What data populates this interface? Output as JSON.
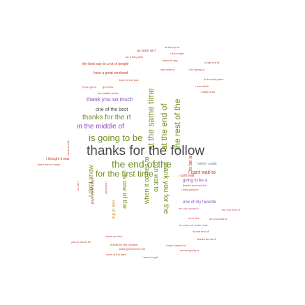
{
  "colors": {
    "gray": "#4a4a4a",
    "olive": "#6f8f1f",
    "red": "#c23b22",
    "pink": "#d2458c",
    "purple": "#8a4cbf",
    "orange": "#e28a1e",
    "slate": "#607a86",
    "brown": "#8a5a2b"
  },
  "words": {
    "thanks_for_the_follow": "thanks for the follow",
    "the_end_of_the": "the end of the",
    "is_going_to_be": "is going to be",
    "for_the_first_time": "for the first time",
    "thanks_for_the_rt": "thanks for the rt",
    "in_the_middle_of": "in the middle of",
    "thank_you_so_much": "thank you so much",
    "one_of_the_best": "one of the best",
    "i_cant_wait_to": "i cant wait to",
    "going_to_be_a": "going to be a",
    "one_of_my_favorite": "one of my favorite",
    "i_wish_i_could": "i wish i could",
    "at_the_same_time": "at the same time",
    "at_the_end_of": "at the end of",
    "the_rest_of_the": "the rest of the",
    "thank_you_for_the": "thank you for the",
    "can_wait_to": "can wait to",
    "when_it_comes_to": "when it comes to",
    "is_one_of_the": "is one of the",
    "i_dont_know": "i dont know",
    "to_be_a": "to be a",
    "one_of_the": "one of the",
    "as_soon_as_i": "as soon as i",
    "i_dont_want": "i dont want",
    "for_a_long_time": "for a long time",
    "the_best_way_to_a_lot_of_people": "the best way to a lot of people",
    "have_a_great_weekend": "have a great weekend",
    "hope_to_see_you": "hope to see you",
    "go_to_the": "go to the",
    "the_middle_of_the": "the middle of the",
    "i_hope_you": "if you get a",
    "i_have_to_say": "i have to say",
    "was_able_to": "was able to",
    "i_am_going_to": "i am going to",
    "i_dont_think": "i dont think",
    "i_want_to_be": "i want to be",
    "to_get_out_of": "to get out of",
    "at_the_top_of": "at the top of",
    "in_the_first_place": "in the first place",
    "i_cant_wait": "i cant wait",
    "i_was_going_to": "i was going to",
    "thanks_so_much_for": "thanks so much for",
    "are_you_going_to": "are you going to",
    "the_first_time_in": "the first time in",
    "a_lot_of_a": "a lot of a",
    "as_much_as_i": "as much as i wish i had",
    "do_you_have_a": "do you have a",
    "by_the_end_of": "by the end of",
    "thanks_for_the_ff": "thanks for the ff",
    "i_look_forward_to": "i look forward to",
    "we_are_going_to": "we are going to",
    "i_need_to_get": "i need to get",
    "most_of_the_time": "most of the time",
    "looking_forward_to_the": "looking forward to the",
    "thanks_for_the_mention": "thanks for the mention",
    "i_have_no_idea": "i have no idea",
    "you_so_much_for": "you so much for",
    "i_thought_it_was": "i thought it was",
    "there_are_so_many": "there are so many",
    "i_am_so": "i am so",
    "i_dont_know_what": "i dont know what",
    "i_got_to_know": "i got to know",
    "i_would_be": "i would be"
  }
}
